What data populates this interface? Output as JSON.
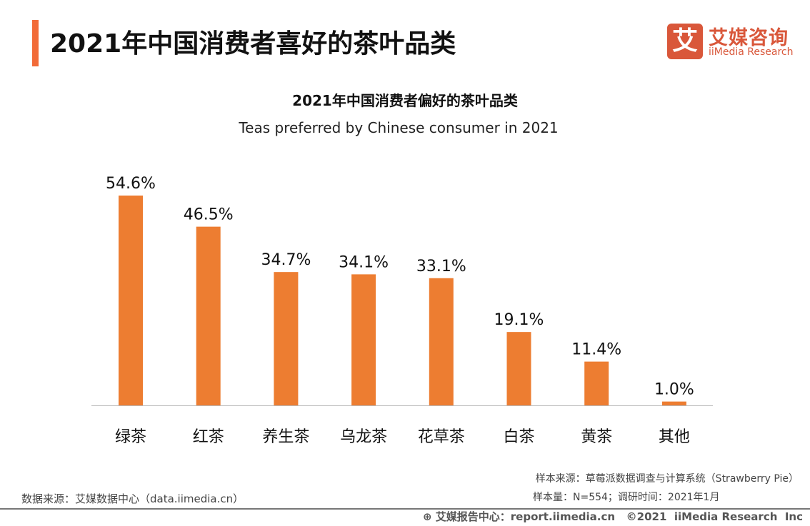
{
  "header": {
    "title": "2021年中国消费者喜好的茶叶品类",
    "accent_color": "#f26b38"
  },
  "logo": {
    "mark": "艾",
    "cn": "艾媒咨询",
    "en": "iiMedia Research",
    "color": "#d9573a"
  },
  "chart_data": {
    "type": "bar",
    "title": "2021年中国消费者偏好的茶叶品类",
    "subtitle": "Teas preferred by Chinese consumer in 2021",
    "categories": [
      "绿茶",
      "红茶",
      "养生茶",
      "乌龙茶",
      "花草茶",
      "白茶",
      "黄茶",
      "其他"
    ],
    "values": [
      54.6,
      46.5,
      34.7,
      34.1,
      33.1,
      19.1,
      11.4,
      1.0
    ],
    "labels": [
      "54.6%",
      "46.5%",
      "34.7%",
      "34.1%",
      "33.1%",
      "19.1%",
      "11.4%",
      "1.0%"
    ],
    "unit": "%",
    "bar_color": "#ed7d31",
    "grid": false,
    "legend": "none"
  },
  "notes": {
    "source": "数据来源：艾媒数据中心（data.iimedia.cn）",
    "sample_source": "样本来源：草莓派数据调查与计算系统（Strawberry Pie）",
    "sample_size": "样本量：N=554；调研时间：2021年1月"
  },
  "footer": {
    "text": "艾媒报告中心：report.iimedia.cn   ©2021  iiMedia Research  Inc",
    "icon": "globe-cursor-icon"
  }
}
